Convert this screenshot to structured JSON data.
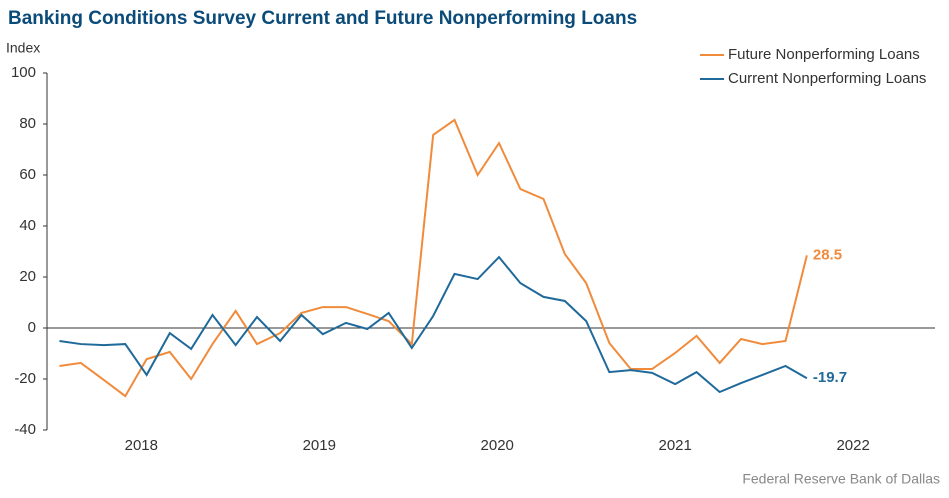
{
  "chart_data": {
    "type": "line",
    "title": "Banking Conditions Survey Current and Future Nonperforming Loans",
    "y_label": "Index",
    "source": "Federal Reserve Bank of Dallas",
    "x": [
      2018.04,
      2018.16,
      2018.29,
      2018.41,
      2018.53,
      2018.66,
      2018.78,
      2018.9,
      2019.03,
      2019.15,
      2019.28,
      2019.4,
      2019.52,
      2019.65,
      2019.77,
      2019.89,
      2020.02,
      2020.14,
      2020.26,
      2020.39,
      2020.51,
      2020.63,
      2020.76,
      2020.88,
      2021.0,
      2021.13,
      2021.25,
      2021.37,
      2021.5,
      2021.62,
      2021.75,
      2021.87,
      2021.99,
      2022.12,
      2022.24
    ],
    "series": [
      {
        "name": "Future Nonperforming Loans",
        "color": "#f08b3c",
        "values": [
          -14.9,
          -13.7,
          -20.4,
          -26.7,
          -12.2,
          -9.4,
          -20,
          -6.3,
          6.7,
          -6.3,
          -2,
          5.9,
          8.2,
          8.2,
          5.5,
          2.7,
          -6.3,
          75.7,
          81.6,
          60,
          72.5,
          54.5,
          50.6,
          29,
          17.6,
          -5.9,
          -16.1,
          -16.1,
          -9.8,
          -3.1,
          -13.7,
          -4.3,
          -6.3,
          -5.1,
          28.5
        ]
      },
      {
        "name": "Current Nonperforming Loans",
        "color": "#1f6a9a",
        "values": [
          -5.1,
          -6.3,
          -6.7,
          -6.3,
          -18.4,
          -2,
          -8.2,
          5.1,
          -6.7,
          4.3,
          -5.1,
          5.1,
          -2.4,
          2,
          -0.4,
          5.9,
          -7.8,
          4.7,
          21.2,
          19.2,
          27.8,
          17.6,
          12.2,
          10.6,
          2.7,
          -17.3,
          -16.5,
          -17.6,
          -22,
          -17.3,
          -25.1,
          -21.6,
          -18.4,
          -14.9,
          -19.7
        ]
      }
    ],
    "xlim": [
      2017.97,
      2022.96
    ],
    "xticks": [
      {
        "value": 2018.5,
        "label": "2018"
      },
      {
        "value": 2019.5,
        "label": "2019"
      },
      {
        "value": 2020.5,
        "label": "2020"
      },
      {
        "value": 2021.5,
        "label": "2021"
      },
      {
        "value": 2022.5,
        "label": "2022"
      }
    ],
    "ylim": [
      -40,
      100
    ],
    "yticks": [
      -40,
      -20,
      0,
      20,
      40,
      60,
      80,
      100
    ],
    "legend": "top-right"
  }
}
